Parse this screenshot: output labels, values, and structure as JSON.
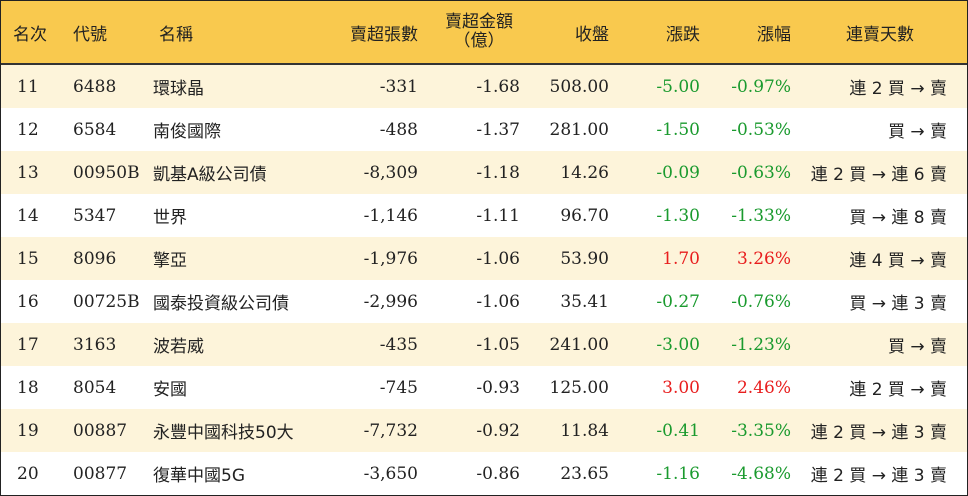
{
  "header": {
    "rank": "名次",
    "code": "代號",
    "name": "名稱",
    "net_sell_shares": "賣超張數",
    "net_sell_amount_line1": "賣超金額",
    "net_sell_amount_line2": "（億）",
    "close": "收盤",
    "change": "漲跌",
    "pct_change": "漲幅",
    "consecutive_days": "連賣天數"
  },
  "colors": {
    "header_bg": "#f9c94e",
    "odd_row_bg": "#fdf4da",
    "even_row_bg": "#ffffff",
    "negative": "#1a9a2e",
    "positive": "#e81e1e"
  },
  "rows": [
    {
      "rank": "11",
      "code": "6488",
      "name": "環球晶",
      "shares": "-331",
      "amount": "-1.68",
      "close": "508.00",
      "change": "-5.00",
      "pct": "-0.97%",
      "trend": "negative",
      "days": "連 2 買 → 賣"
    },
    {
      "rank": "12",
      "code": "6584",
      "name": "南俊國際",
      "shares": "-488",
      "amount": "-1.37",
      "close": "281.00",
      "change": "-1.50",
      "pct": "-0.53%",
      "trend": "negative",
      "days": "買 → 賣"
    },
    {
      "rank": "13",
      "code": "00950B",
      "name": "凱基A級公司債",
      "shares": "-8,309",
      "amount": "-1.18",
      "close": "14.26",
      "change": "-0.09",
      "pct": "-0.63%",
      "trend": "negative",
      "days": "連 2 買 → 連 6 賣"
    },
    {
      "rank": "14",
      "code": "5347",
      "name": "世界",
      "shares": "-1,146",
      "amount": "-1.11",
      "close": "96.70",
      "change": "-1.30",
      "pct": "-1.33%",
      "trend": "negative",
      "days": "買 → 連 8 賣"
    },
    {
      "rank": "15",
      "code": "8096",
      "name": "擎亞",
      "shares": "-1,976",
      "amount": "-1.06",
      "close": "53.90",
      "change": "1.70",
      "pct": "3.26%",
      "trend": "positive",
      "days": "連 4 買 → 賣"
    },
    {
      "rank": "16",
      "code": "00725B",
      "name": "國泰投資級公司債",
      "shares": "-2,996",
      "amount": "-1.06",
      "close": "35.41",
      "change": "-0.27",
      "pct": "-0.76%",
      "trend": "negative",
      "days": "買 → 連 3 賣"
    },
    {
      "rank": "17",
      "code": "3163",
      "name": "波若威",
      "shares": "-435",
      "amount": "-1.05",
      "close": "241.00",
      "change": "-3.00",
      "pct": "-1.23%",
      "trend": "negative",
      "days": "買 → 賣"
    },
    {
      "rank": "18",
      "code": "8054",
      "name": "安國",
      "shares": "-745",
      "amount": "-0.93",
      "close": "125.00",
      "change": "3.00",
      "pct": "2.46%",
      "trend": "positive",
      "days": "連 2 買 → 賣"
    },
    {
      "rank": "19",
      "code": "00887",
      "name": "永豐中國科技50大",
      "shares": "-7,732",
      "amount": "-0.92",
      "close": "11.84",
      "change": "-0.41",
      "pct": "-3.35%",
      "trend": "negative",
      "days": "連 2 買 → 連 3 賣"
    },
    {
      "rank": "20",
      "code": "00877",
      "name": "復華中國5G",
      "shares": "-3,650",
      "amount": "-0.86",
      "close": "23.65",
      "change": "-1.16",
      "pct": "-4.68%",
      "trend": "negative",
      "days": "連 2 買 → 連 3 賣"
    }
  ]
}
